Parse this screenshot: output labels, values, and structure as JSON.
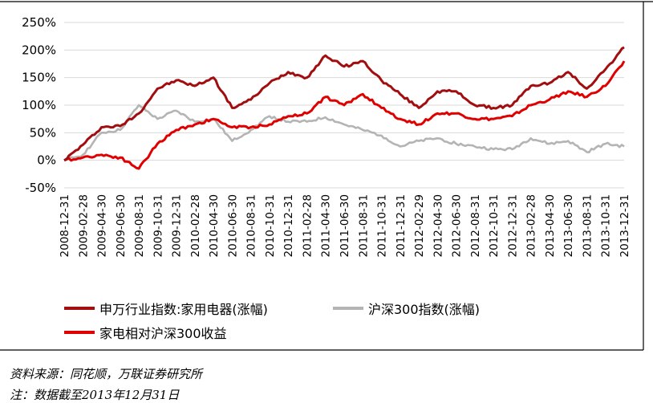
{
  "colors": {
    "industry_index": "#a20d10",
    "hs300": "#b4b4b4",
    "relative": "#e00000",
    "grid": "#d9d9d9",
    "frame": "#000000"
  },
  "chart_data": {
    "type": "line",
    "title": "",
    "xlabel": "",
    "ylabel": "",
    "ylim": [
      -50,
      250
    ],
    "yticks": [
      "250%",
      "200%",
      "150%",
      "100%",
      "50%",
      "0%",
      "-50%"
    ],
    "ytick_values": [
      250,
      200,
      150,
      100,
      50,
      0,
      -50
    ],
    "x_ticks": [
      "2008-12-31",
      "2009-02-28",
      "2009-04-30",
      "2009-06-30",
      "2009-08-31",
      "2009-10-31",
      "2009-12-31",
      "2010-02-28",
      "2010-04-30",
      "2010-06-30",
      "2010-08-31",
      "2010-10-31",
      "2010-12-31",
      "2011-02-28",
      "2011-04-30",
      "2011-06-30",
      "2011-08-31",
      "2011-10-31",
      "2011-12-31",
      "2012-02-29",
      "2012-04-30",
      "2012-06-30",
      "2012-08-31",
      "2012-10-31",
      "2012-12-31",
      "2013-02-28",
      "2013-04-30",
      "2013-06-30",
      "2013-08-31",
      "2013-10-31",
      "2013-12-31"
    ],
    "legend": [
      {
        "name": "申万行业指数:家用电器(涨幅)",
        "color_key": "industry_index"
      },
      {
        "name": "沪深300指数(涨幅)",
        "color_key": "hs300"
      },
      {
        "name": "家电相对沪深300收益",
        "color_key": "relative"
      }
    ],
    "series": [
      {
        "name": "申万行业指数:家用电器(涨幅)",
        "color_key": "industry_index",
        "values": [
          0,
          28,
          60,
          62,
          85,
          130,
          145,
          135,
          150,
          95,
          110,
          140,
          160,
          150,
          190,
          170,
          180,
          145,
          120,
          95,
          125,
          125,
          100,
          95,
          100,
          135,
          140,
          160,
          130,
          165,
          205
        ]
      },
      {
        "name": "沪深300指数(涨幅)",
        "color_key": "hs300",
        "values": [
          0,
          10,
          50,
          55,
          100,
          75,
          90,
          70,
          75,
          35,
          55,
          80,
          70,
          70,
          78,
          65,
          55,
          45,
          25,
          35,
          40,
          30,
          25,
          20,
          20,
          40,
          30,
          35,
          15,
          30,
          25
        ]
      },
      {
        "name": "家电相对沪深300收益",
        "color_key": "relative",
        "values": [
          0,
          5,
          10,
          5,
          -15,
          30,
          55,
          65,
          75,
          60,
          60,
          65,
          80,
          85,
          115,
          100,
          120,
          95,
          75,
          65,
          85,
          85,
          75,
          75,
          80,
          100,
          110,
          125,
          115,
          135,
          180
        ]
      }
    ]
  },
  "legend_labels": {
    "industry_index": "申万行业指数:家用电器(涨幅)",
    "hs300": "沪深300指数(涨幅)",
    "relative": "家电相对沪深300收益"
  },
  "footer": {
    "source": "资料来源：同花顺，万联证券研究所",
    "note": "注：数据截至2013年12月31日"
  }
}
